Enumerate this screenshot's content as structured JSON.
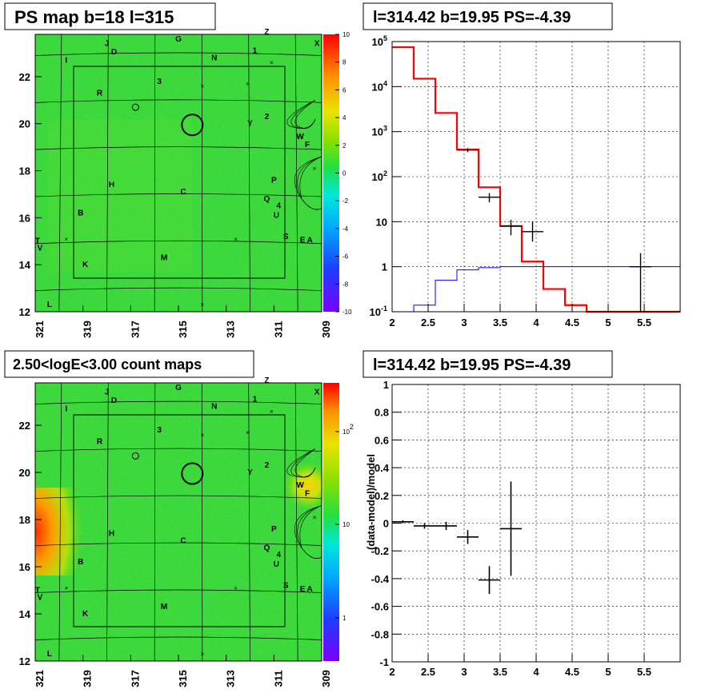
{
  "panels": {
    "tl": {
      "title": "PS map b=18 l=315"
    },
    "tr": {
      "title": "l=314.42 b=19.95 PS=-4.39"
    },
    "bl": {
      "title": "2.50<logE<3.00 count maps"
    },
    "br": {
      "title": "l=314.42 b=19.95 PS=-4.39"
    }
  },
  "colors": {
    "model": "#ff0000",
    "data": "#000000",
    "background": "#0000ff"
  },
  "chart_data": [
    {
      "type": "heatmap",
      "title": "PS map b=18 l=315",
      "x_ticks": [
        "321",
        "319",
        "317",
        "315",
        "313",
        "311",
        "309"
      ],
      "y_ticks": [
        "22",
        "20",
        "18",
        "16",
        "14",
        "12"
      ],
      "xlim": [
        321,
        309
      ],
      "ylim": [
        12,
        23.8
      ],
      "colorbar_ticks": [
        "10",
        "8",
        "6",
        "4",
        "2",
        "0",
        "-2",
        "-4",
        "-6",
        "-8",
        "-10"
      ],
      "zlim": [
        -10,
        10
      ],
      "sources": [
        {
          "label": "J",
          "l": 318.0,
          "b": 23.3
        },
        {
          "label": "D",
          "l": 317.7,
          "b": 22.95
        },
        {
          "label": "G",
          "l": 315.0,
          "b": 23.5
        },
        {
          "label": "Z",
          "l": 311.3,
          "b": 23.8
        },
        {
          "label": "1",
          "l": 311.8,
          "b": 23.0
        },
        {
          "label": "N",
          "l": 313.5,
          "b": 22.7
        },
        {
          "label": "X",
          "l": 309.2,
          "b": 23.3
        },
        {
          "label": "I",
          "l": 319.7,
          "b": 22.6
        },
        {
          "label": "3",
          "l": 315.8,
          "b": 21.7
        },
        {
          "label": "R",
          "l": 318.3,
          "b": 21.2
        },
        {
          "label": "2",
          "l": 311.3,
          "b": 20.2
        },
        {
          "label": "Y",
          "l": 312.0,
          "b": 19.9
        },
        {
          "label": "W",
          "l": 309.9,
          "b": 19.35
        },
        {
          "label": "F",
          "l": 309.6,
          "b": 19.0
        },
        {
          "label": "H",
          "l": 317.8,
          "b": 17.3
        },
        {
          "label": "C",
          "l": 314.8,
          "b": 17.0
        },
        {
          "label": "P",
          "l": 311.0,
          "b": 17.5
        },
        {
          "label": "Q",
          "l": 311.3,
          "b": 16.7
        },
        {
          "label": "4",
          "l": 310.8,
          "b": 16.4
        },
        {
          "label": "U",
          "l": 310.9,
          "b": 16.0
        },
        {
          "label": "B",
          "l": 319.1,
          "b": 16.1
        },
        {
          "label": "S",
          "l": 310.5,
          "b": 15.1
        },
        {
          "label": "E",
          "l": 309.8,
          "b": 14.95
        },
        {
          "label": "A",
          "l": 309.5,
          "b": 14.95
        },
        {
          "label": "T",
          "l": 320.9,
          "b": 14.9
        },
        {
          "label": "V",
          "l": 320.8,
          "b": 14.6
        },
        {
          "label": "M",
          "l": 315.6,
          "b": 14.2
        },
        {
          "label": "K",
          "l": 318.9,
          "b": 13.9
        },
        {
          "label": "L",
          "l": 320.4,
          "b": 12.2
        }
      ]
    },
    {
      "type": "line",
      "title": "l=314.42 b=19.95 PS=-4.39",
      "y_scale": "log",
      "xlim": [
        2,
        6
      ],
      "ylim": [
        0.1,
        100000
      ],
      "x_ticks": [
        "2",
        "2.5",
        "3",
        "3.5",
        "4",
        "4.5",
        "5",
        "5.5"
      ],
      "y_ticks": [
        "10^{-1}",
        "1",
        "10",
        "10^{2}",
        "10^{3}",
        "10^{4}",
        "10^{5}"
      ],
      "grid": true,
      "series": [
        {
          "style": "step",
          "color": "#ff0000",
          "edges": [
            2,
            2.3,
            2.6,
            2.9,
            3.2,
            3.5,
            3.8,
            4.1,
            4.4,
            4.7,
            5.0,
            5.3,
            5.6,
            6.0
          ],
          "values": [
            75000,
            15000,
            2600,
            400,
            58,
            8,
            1.3,
            0.32,
            0.14,
            0.1,
            0.1,
            0.1,
            0.1
          ]
        },
        {
          "style": "step",
          "color": "#0000ff",
          "edges": [
            2,
            2.3,
            2.6,
            2.9,
            3.2,
            3.5,
            3.8,
            4.1,
            4.4,
            4.7,
            5.0,
            5.3,
            5.6,
            6.0
          ],
          "values": [
            0.1,
            0.14,
            0.5,
            0.85,
            0.95,
            1.0,
            1.0,
            1.0,
            1.0,
            1.0,
            1.0,
            1.0,
            1.0
          ]
        },
        {
          "style": "errorbar",
          "color": "#000000",
          "points": [
            {
              "x": 3.05,
              "xerr": 0.15,
              "y": 390,
              "ylo": 350,
              "yhi": 430
            },
            {
              "x": 3.35,
              "xerr": 0.15,
              "y": 35,
              "ylo": 27,
              "yhi": 43
            },
            {
              "x": 3.65,
              "xerr": 0.15,
              "y": 8,
              "ylo": 5,
              "yhi": 11
            },
            {
              "x": 3.95,
              "xerr": 0.15,
              "y": 6,
              "ylo": 3.6,
              "yhi": 10
            },
            {
              "x": 5.45,
              "xerr": 0.15,
              "y": 1,
              "ylo": 0.1,
              "yhi": 2
            }
          ]
        }
      ]
    },
    {
      "type": "heatmap",
      "title": "2.50<logE<3.00 count maps",
      "x_ticks": [
        "321",
        "319",
        "317",
        "315",
        "313",
        "311",
        "309"
      ],
      "y_ticks": [
        "22",
        "20",
        "18",
        "16",
        "14",
        "12"
      ],
      "xlim": [
        321,
        309
      ],
      "ylim": [
        12,
        23.8
      ],
      "colorbar_ticks": [
        "10^{2}",
        "10",
        "1"
      ],
      "z_scale": "log"
    },
    {
      "type": "scatter",
      "title": "l=314.42 b=19.95 PS=-4.39",
      "ylabel": "(data-model)/model",
      "xlim": [
        2,
        6
      ],
      "ylim": [
        -1,
        1
      ],
      "x_ticks": [
        "2",
        "2.5",
        "3",
        "3.5",
        "4",
        "4.5",
        "5",
        "5.5"
      ],
      "y_ticks": [
        "1",
        "0.8",
        "0.6",
        "0.4",
        "0.2",
        "0",
        "-0.2",
        "-0.4",
        "-0.6",
        "-0.8",
        "-1"
      ],
      "grid": true,
      "points": [
        {
          "x": 2.15,
          "xerr": 0.15,
          "y": 0.01,
          "yerr": 0.01
        },
        {
          "x": 2.45,
          "xerr": 0.15,
          "y": -0.02,
          "yerr": 0.02
        },
        {
          "x": 2.75,
          "xerr": 0.15,
          "y": -0.02,
          "yerr": 0.03
        },
        {
          "x": 3.05,
          "xerr": 0.15,
          "y": -0.1,
          "yerr": 0.05
        },
        {
          "x": 3.35,
          "xerr": 0.15,
          "y": -0.41,
          "yerr": 0.1
        },
        {
          "x": 3.65,
          "xerr": 0.15,
          "y": -0.04,
          "yerr": 0.34
        }
      ]
    }
  ]
}
